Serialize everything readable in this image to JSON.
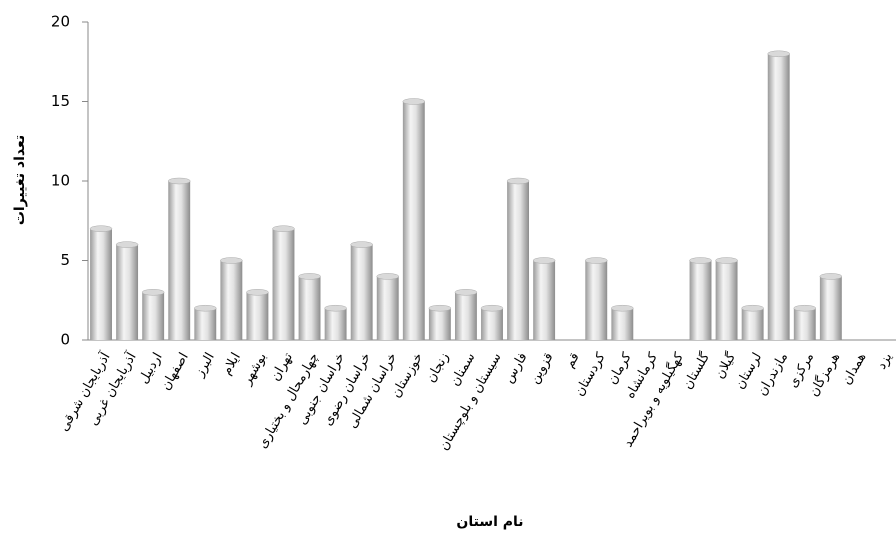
{
  "chart_data": {
    "type": "bar",
    "y_label": "تعداد تغییرات",
    "x_label": "نام استان",
    "categories": [
      "آذربایجان شرقی",
      "آذربایجان غربی",
      "اردبیل",
      "اصفهان",
      "البرز",
      "ایلام",
      "بوشهر",
      "تهران",
      "چهارمحال و بختیاری",
      "خراسان جنوبی",
      "خراسان رضوی",
      "خراسان شمالی",
      "خوزستان",
      "زنجان",
      "سمنان",
      "سیستان و بلوچستان",
      "فارس",
      "قزوین",
      "قم",
      "کردستان",
      "کرمان",
      "کرمانشاه",
      "کهگیلویه و بویراحمد",
      "گلستان",
      "گیلان",
      "لرستان",
      "مازندران",
      "مرکزی",
      "هرمزگان",
      "همدان",
      "یزد"
    ],
    "values": [
      7,
      6,
      3,
      10,
      2,
      5,
      3,
      7,
      4,
      2,
      6,
      4,
      15,
      2,
      3,
      2,
      10,
      5,
      0,
      5,
      2,
      0,
      0,
      5,
      5,
      2,
      18,
      2,
      4,
      0,
      0
    ],
    "color": "#d9d9d9",
    "ylim": [
      0,
      20
    ],
    "yticks": [
      0,
      5,
      10,
      15,
      20
    ]
  }
}
